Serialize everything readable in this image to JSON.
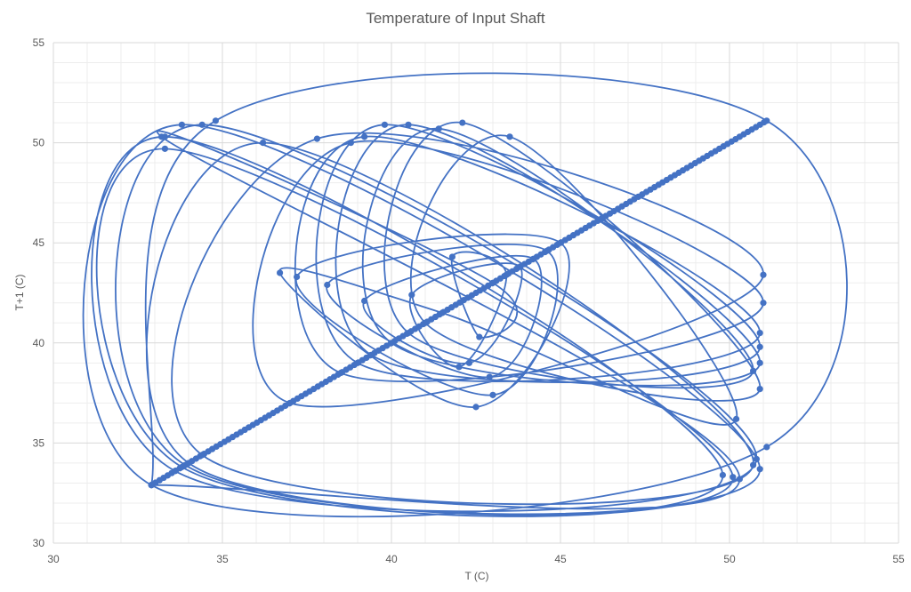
{
  "chart_data": {
    "type": "scatter",
    "title": "Temperature of Input Shaft",
    "xlabel": "T (C)",
    "ylabel": "T+1 (C)",
    "xlim": [
      30,
      55
    ],
    "ylim": [
      30,
      55
    ],
    "xticks": [
      30,
      35,
      40,
      45,
      50,
      55
    ],
    "yticks": [
      30,
      35,
      40,
      45,
      50,
      55
    ],
    "minor_grid": true,
    "major_grid": true,
    "legend": "none",
    "colors": {
      "series": "#4472C4",
      "major_grid": "#D9D9D9",
      "minor_grid": "#EDEDED",
      "text": "#595959"
    },
    "series": [
      {
        "style": "smoothed-lines-with-markers",
        "points": [
          [
            32.9,
            32.9
          ],
          [
            34.8,
            51.1
          ],
          [
            51.1,
            51.1
          ],
          [
            51.1,
            34.8
          ],
          [
            32.9,
            32.9
          ],
          [
            33.8,
            50.9
          ],
          [
            50.9,
            33.7
          ],
          [
            33.9,
            33.9
          ],
          [
            34.4,
            50.9
          ],
          [
            50.8,
            34.2
          ],
          [
            33.6,
            33.6
          ],
          [
            33.3,
            50.3
          ],
          [
            49.8,
            33.4
          ],
          [
            33.8,
            33.8
          ],
          [
            33.3,
            49.7
          ],
          [
            50.1,
            33.3
          ],
          [
            34.0,
            34.0
          ],
          [
            36.2,
            50.0
          ],
          [
            50.7,
            33.9
          ],
          [
            34.4,
            34.4
          ],
          [
            37.8,
            50.2
          ],
          [
            51.0,
            43.4
          ],
          [
            37.0,
            37.0
          ],
          [
            38.8,
            50.0
          ],
          [
            51.0,
            42.0
          ],
          [
            38.5,
            38.5
          ],
          [
            39.2,
            50.3
          ],
          [
            50.9,
            40.5
          ],
          [
            39.0,
            39.0
          ],
          [
            39.8,
            50.9
          ],
          [
            50.9,
            39.8
          ],
          [
            39.4,
            39.4
          ],
          [
            40.5,
            50.9
          ],
          [
            50.9,
            39.0
          ],
          [
            40.0,
            40.0
          ],
          [
            41.4,
            50.7
          ],
          [
            50.7,
            38.6
          ],
          [
            40.5,
            40.5
          ],
          [
            42.1,
            51.0
          ],
          [
            50.9,
            37.7
          ],
          [
            41.0,
            41.0
          ],
          [
            43.5,
            50.3
          ],
          [
            50.2,
            36.2
          ],
          [
            41.5,
            41.5
          ],
          [
            36.7,
            43.5
          ],
          [
            42.5,
            36.8
          ],
          [
            45.0,
            45.0
          ],
          [
            37.2,
            43.3
          ],
          [
            43.0,
            37.4
          ],
          [
            44.6,
            44.6
          ],
          [
            38.1,
            42.9
          ],
          [
            42.9,
            38.3
          ],
          [
            44.2,
            44.2
          ],
          [
            39.2,
            42.1
          ],
          [
            42.3,
            39.0
          ],
          [
            43.8,
            43.8
          ],
          [
            40.6,
            42.4
          ],
          [
            42.0,
            38.8
          ],
          [
            43.4,
            43.4
          ],
          [
            41.8,
            44.3
          ],
          [
            42.6,
            40.3
          ],
          [
            43.0,
            43.0
          ],
          [
            33.2,
            50.3
          ],
          [
            50.3,
            33.2
          ],
          [
            32.9,
            32.9
          ]
        ]
      }
    ]
  }
}
